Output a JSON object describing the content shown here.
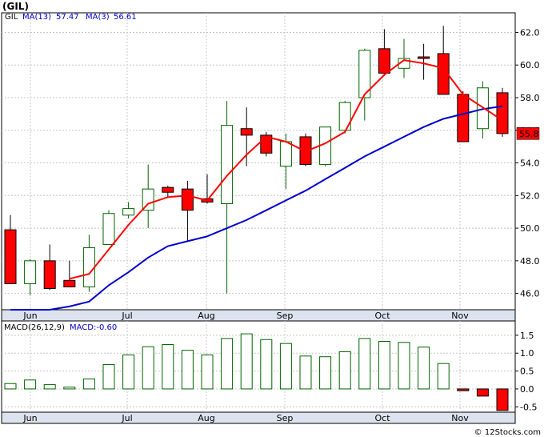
{
  "chart_title": "(GIL)",
  "watermark": "© 12Stocks.com",
  "price_panel": {
    "legend": {
      "symbol": "GIL",
      "ma13_label": "MA(13)",
      "ma13_value": "57.47",
      "ma3_label": "MA(3)",
      "ma3_value": "56.61"
    },
    "last_price_label": "55.8",
    "last_price": 55.8,
    "y_ticks": [
      "46.0",
      "48.0",
      "50.0",
      "52.0",
      "54.0",
      "56.0",
      "58.0",
      "60.0",
      "62.0"
    ],
    "colors": {
      "up_fill": "#ffffff",
      "up_stroke": "#006400",
      "down_fill": "#ff0000",
      "down_stroke": "#000000",
      "ma13": "#0000cc",
      "ma3": "#ff0000"
    }
  },
  "macd_panel": {
    "legend": {
      "label": "MACD(26,12,9)",
      "value_label": "MACD:-0.60"
    },
    "y_ticks": [
      "1.5",
      "1.0",
      "0.5",
      "0.0",
      "-0.5"
    ],
    "colors": {
      "up_stroke": "#006400",
      "down_fill": "#ff0000"
    }
  },
  "x_ticks": [
    "Jun",
    "Jul",
    "Aug",
    "Sep",
    "Oct",
    "Nov"
  ],
  "chart_data": [
    {
      "type": "candlestick",
      "title": "(GIL)",
      "x_tick_labels": [
        "Jun",
        "Jul",
        "Aug",
        "Sep",
        "Oct",
        "Nov"
      ],
      "ylim": [
        45.0,
        63.2
      ],
      "candles": [
        {
          "open": 49.9,
          "high": 50.8,
          "low": 46.6,
          "close": 46.6
        },
        {
          "open": 46.6,
          "high": 48.1,
          "low": 45.9,
          "close": 48.0
        },
        {
          "open": 48.0,
          "high": 49.0,
          "low": 46.2,
          "close": 46.3
        },
        {
          "open": 46.8,
          "high": 48.0,
          "low": 46.4,
          "close": 46.4
        },
        {
          "open": 46.4,
          "high": 49.6,
          "low": 46.1,
          "close": 48.8
        },
        {
          "open": 49.0,
          "high": 51.1,
          "low": 49.0,
          "close": 50.9
        },
        {
          "open": 50.8,
          "high": 51.6,
          "low": 50.6,
          "close": 51.2
        },
        {
          "open": 51.1,
          "high": 53.9,
          "low": 50.0,
          "close": 52.4
        },
        {
          "open": 52.5,
          "high": 52.6,
          "low": 51.9,
          "close": 52.2
        },
        {
          "open": 52.4,
          "high": 52.9,
          "low": 49.2,
          "close": 51.1
        },
        {
          "open": 51.8,
          "high": 53.3,
          "low": 51.5,
          "close": 51.6
        },
        {
          "open": 51.5,
          "high": 57.8,
          "low": 46.0,
          "close": 56.3
        },
        {
          "open": 56.1,
          "high": 57.4,
          "low": 53.8,
          "close": 55.7
        },
        {
          "open": 55.7,
          "high": 55.9,
          "low": 54.4,
          "close": 54.6
        },
        {
          "open": 53.8,
          "high": 55.8,
          "low": 52.4,
          "close": 55.3
        },
        {
          "open": 55.6,
          "high": 55.8,
          "low": 53.8,
          "close": 53.9
        },
        {
          "open": 53.9,
          "high": 56.2,
          "low": 53.8,
          "close": 56.2
        },
        {
          "open": 56.0,
          "high": 57.8,
          "low": 55.8,
          "close": 57.7
        },
        {
          "open": 58.0,
          "high": 61.0,
          "low": 56.6,
          "close": 60.9
        },
        {
          "open": 61.0,
          "high": 62.2,
          "low": 59.4,
          "close": 59.5
        },
        {
          "open": 59.8,
          "high": 61.6,
          "low": 59.2,
          "close": 60.4
        },
        {
          "open": 60.5,
          "high": 61.3,
          "low": 59.1,
          "close": 60.4
        },
        {
          "open": 60.7,
          "high": 62.4,
          "low": 58.2,
          "close": 58.2
        },
        {
          "open": 58.2,
          "high": 58.4,
          "low": 55.3,
          "close": 55.3
        },
        {
          "open": 56.1,
          "high": 59.0,
          "low": 55.5,
          "close": 58.6
        },
        {
          "open": 58.3,
          "high": 58.6,
          "low": 55.6,
          "close": 55.8
        }
      ],
      "ma13": [
        45.0,
        45.0,
        45.0,
        45.2,
        45.5,
        46.5,
        47.3,
        48.2,
        48.9,
        49.2,
        49.5,
        50.0,
        50.5,
        51.1,
        51.7,
        52.3,
        53.0,
        53.7,
        54.4,
        55.0,
        55.6,
        56.2,
        56.7,
        57.0,
        57.3,
        57.47
      ],
      "ma3": [
        null,
        null,
        null,
        46.9,
        47.2,
        48.7,
        50.2,
        51.5,
        51.9,
        52.0,
        51.7,
        53.2,
        54.5,
        55.6,
        55.3,
        54.7,
        55.2,
        55.9,
        58.2,
        59.4,
        60.3,
        60.1,
        59.8,
        58.2,
        57.4,
        56.61
      ]
    },
    {
      "type": "bar",
      "title": "MACD(26,12,9)",
      "ylim": [
        -0.65,
        1.9
      ],
      "values": [
        0.15,
        0.25,
        0.12,
        0.05,
        0.28,
        0.68,
        0.95,
        1.18,
        1.24,
        1.08,
        0.95,
        1.41,
        1.54,
        1.38,
        1.27,
        0.92,
        0.9,
        1.04,
        1.41,
        1.33,
        1.3,
        1.17,
        0.71,
        -0.05,
        -0.2,
        -0.6
      ]
    }
  ]
}
